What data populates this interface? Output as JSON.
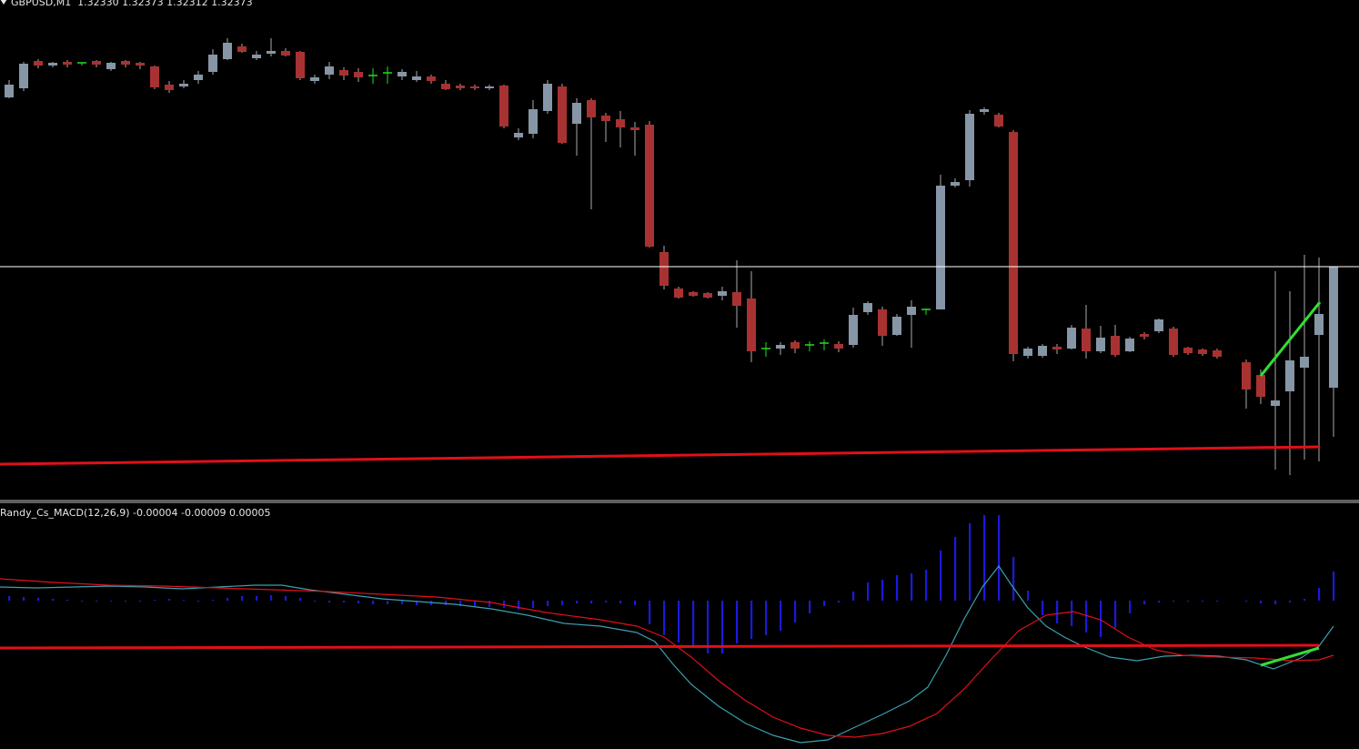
{
  "symbol_header": "GBPUSD,M1  1.32330 1.32373 1.32312 1.32373",
  "indicator_header": "Randy_Cs_MACD(12,26,9) -0.00004 -0.00009 0.00005",
  "colors": {
    "background": "#000000",
    "bull_candle": "#8796a6",
    "bear_candle": "#a83232",
    "doji": "#22dd22",
    "wick": "#aaaaaa",
    "trend_line": "#e0101a",
    "divergence_line": "#33dd33",
    "reference_line": "#ffffff",
    "histogram": "#1a1adc",
    "macd_line": "#3a9fb0",
    "signal_line": "#e0101a"
  }
}
